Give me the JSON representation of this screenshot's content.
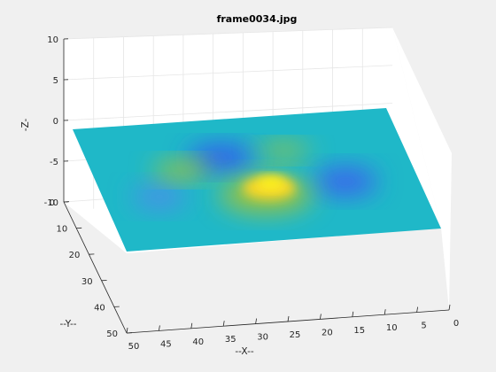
{
  "chart_data": {
    "type": "surface",
    "title": "frame0034.jpg",
    "xlabel": "--X--",
    "ylabel": "--Y--",
    "zlabel": "-Z-",
    "xlim": [
      0,
      50
    ],
    "ylim": [
      0,
      50
    ],
    "zlim": [
      -10,
      10
    ],
    "x_ticks": [
      "0",
      "5",
      "10",
      "15",
      "20",
      "25",
      "30",
      "35",
      "40",
      "45",
      "50"
    ],
    "y_ticks": [
      "0",
      "10",
      "20",
      "30",
      "40",
      "50"
    ],
    "z_ticks": [
      "-10",
      "-5",
      "0",
      "5",
      "10"
    ],
    "grid": true,
    "colormap": "parula",
    "surface_features": [
      {
        "kind": "peak",
        "x": 25,
        "y": 25,
        "z": 4.5
      },
      {
        "kind": "peak",
        "x": 30,
        "y": 16,
        "z": 2
      },
      {
        "kind": "peak",
        "x": 36,
        "y": 14,
        "z": 1.5
      },
      {
        "kind": "trough",
        "x": 32,
        "y": 10,
        "z": -4
      },
      {
        "kind": "trough",
        "x": 17,
        "y": 21,
        "z": -3.5
      },
      {
        "kind": "trough",
        "x": 39,
        "y": 30,
        "z": -1.5
      }
    ]
  }
}
